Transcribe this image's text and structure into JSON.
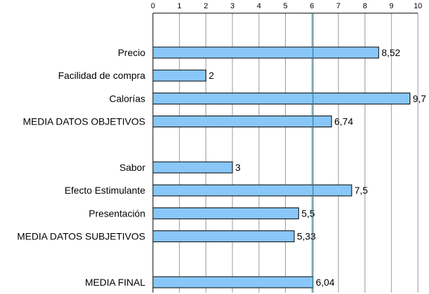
{
  "chart_data": {
    "type": "bar",
    "orientation": "horizontal",
    "title": "",
    "xlabel": "",
    "ylabel": "",
    "xlim": [
      0,
      10
    ],
    "xticks": [
      "0",
      "1",
      "2",
      "3",
      "4",
      "5",
      "6",
      "7",
      "8",
      "9",
      "10"
    ],
    "grid": true,
    "tick_position": "top",
    "categories": [
      "Precio",
      "Facilidad de compra",
      "Calorías",
      "MEDIA DATOS OBJETIVOS",
      "",
      "Sabor",
      "Efecto Estimulante",
      "Presentación",
      "MEDIA DATOS SUBJETIVOS",
      "",
      "MEDIA FINAL"
    ],
    "values": [
      8.52,
      2,
      9.7,
      6.74,
      null,
      3,
      7.5,
      5.5,
      5.33,
      null,
      6.04
    ],
    "value_labels": [
      "8,52",
      "2",
      "9,7",
      "6,74",
      "",
      "3",
      "7,5",
      "5,5",
      "5,33",
      "",
      "6,04"
    ],
    "reference_line": {
      "value": 6.04
    },
    "colors": {
      "bar": "#88c7f8",
      "reference_line": "#2f7f8f",
      "grid": "#9a9a9a"
    }
  }
}
